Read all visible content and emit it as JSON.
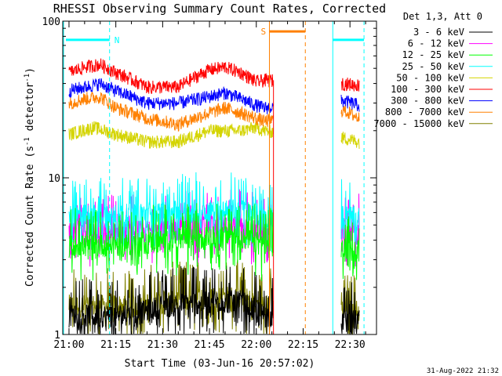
{
  "chart_data": {
    "type": "line",
    "title": "RHESSI Observing Summary Count Rates, Corrected",
    "xlabel": "Start Time (03-Jun-16 20:57:02)",
    "ylabel_main": "Corrected Count Rate (s",
    "ylabel_sup1": "-1",
    "ylabel_mid": " detector",
    "ylabel_sup2": "-1",
    "ylabel_end": ")",
    "yscale": "log",
    "ylim": [
      1,
      100
    ],
    "x_unit": "minutes",
    "xlim": [
      -2.0,
      98.5
    ],
    "x_ticks": [
      {
        "label": "21:00",
        "value": 0
      },
      {
        "label": "21:15",
        "value": 15
      },
      {
        "label": "21:30",
        "value": 30
      },
      {
        "label": "21:45",
        "value": 45
      },
      {
        "label": "22:00",
        "value": 60
      },
      {
        "label": "22:15",
        "value": 75
      },
      {
        "label": "22:30",
        "value": 90
      }
    ],
    "y_ticks": [
      {
        "label": "1",
        "value": 1
      },
      {
        "label": "10",
        "value": 10
      },
      {
        "label": "100",
        "value": 100
      }
    ],
    "legend_header": "Det 1,3, Att 0",
    "legend_position": "top-right, outside plot",
    "footer_date": "31-Aug-2022 21:32",
    "data_gaps": [
      [
        65.5,
        87.2
      ]
    ],
    "series": [
      {
        "name": "3 - 6 keV",
        "color": "#000000",
        "x": [
          0,
          20,
          30,
          45,
          55,
          62.5,
          88,
          93
        ],
        "y": [
          1.3,
          1.3,
          1.5,
          1.6,
          1.6,
          1.3,
          1.2,
          1.2
        ]
      },
      {
        "name": "6 - 12 keV",
        "color": "#ff00ff",
        "x": [
          0,
          20,
          30,
          45,
          55,
          62.5,
          88,
          93
        ],
        "y": [
          4.3,
          4.4,
          4.6,
          4.8,
          4.8,
          4.3,
          4.5,
          4.4
        ]
      },
      {
        "name": "12 - 25 keV",
        "color": "#00ff00",
        "x": [
          0,
          20,
          30,
          45,
          55,
          62.5,
          88,
          93
        ],
        "y": [
          3.6,
          3.7,
          3.9,
          4.1,
          4.1,
          3.6,
          3.4,
          3.4
        ]
      },
      {
        "name": "25 - 50 keV",
        "color": "#00ffff",
        "x": [
          0,
          20,
          30,
          45,
          55,
          62.5,
          88,
          93
        ],
        "y": [
          5.6,
          5.7,
          5.9,
          6.1,
          6.1,
          5.6,
          5.6,
          5.5
        ]
      },
      {
        "name": "50 - 100 keV",
        "color": "#d4d400",
        "x": [
          0,
          8,
          15,
          25,
          35,
          45,
          50,
          55,
          60,
          62.5,
          88,
          93
        ],
        "y": [
          19,
          21,
          19,
          17,
          17,
          20,
          20,
          20,
          21,
          20,
          18,
          17
        ]
      },
      {
        "name": "100 - 300 keV",
        "color": "#ff0000",
        "x": [
          0,
          5,
          10,
          15,
          25,
          35,
          45,
          50,
          55,
          60,
          62.5,
          88,
          93
        ],
        "y": [
          47,
          51,
          53,
          47,
          38,
          38,
          49,
          51,
          47,
          41,
          42,
          40,
          39
        ]
      },
      {
        "name": "300 - 800 keV",
        "color": "#0000ff",
        "x": [
          0,
          5,
          10,
          15,
          25,
          35,
          45,
          50,
          55,
          60,
          62.5,
          88,
          93
        ],
        "y": [
          36,
          38,
          40,
          36,
          30,
          30,
          33,
          35,
          32,
          29,
          28,
          31,
          29
        ]
      },
      {
        "name": "800 - 7000 keV",
        "color": "#ff8000",
        "x": [
          0,
          5,
          10,
          15,
          25,
          35,
          45,
          50,
          55,
          60,
          62.5,
          88,
          93
        ],
        "y": [
          30,
          32,
          33,
          28,
          24,
          22,
          26,
          28,
          26,
          24,
          23,
          27,
          24
        ]
      },
      {
        "name": "7000 - 15000 keV",
        "color": "#808000",
        "x": [
          0,
          20,
          30,
          45,
          55,
          62.5,
          88,
          93
        ],
        "y": [
          1.5,
          1.5,
          1.6,
          1.7,
          1.7,
          1.5,
          1.4,
          1.4
        ]
      }
    ],
    "flags": [
      {
        "label": "N",
        "color": "#00ffff",
        "bars": [
          [
            -1,
            13
          ],
          [
            84.5,
            94.5
          ]
        ],
        "level": 76,
        "vlines": [
          {
            "x": 13,
            "dash": true
          },
          {
            "x": 84.5,
            "dash": false
          },
          {
            "x": 94.5,
            "dash": true
          }
        ]
      },
      {
        "label": "S",
        "color": "#ff8000",
        "bars": [
          [
            64.2,
            75.7
          ]
        ],
        "level": 86,
        "vlines": [
          {
            "x": 64.2,
            "dash": false
          },
          {
            "x": 75.7,
            "dash": true
          }
        ]
      }
    ]
  }
}
